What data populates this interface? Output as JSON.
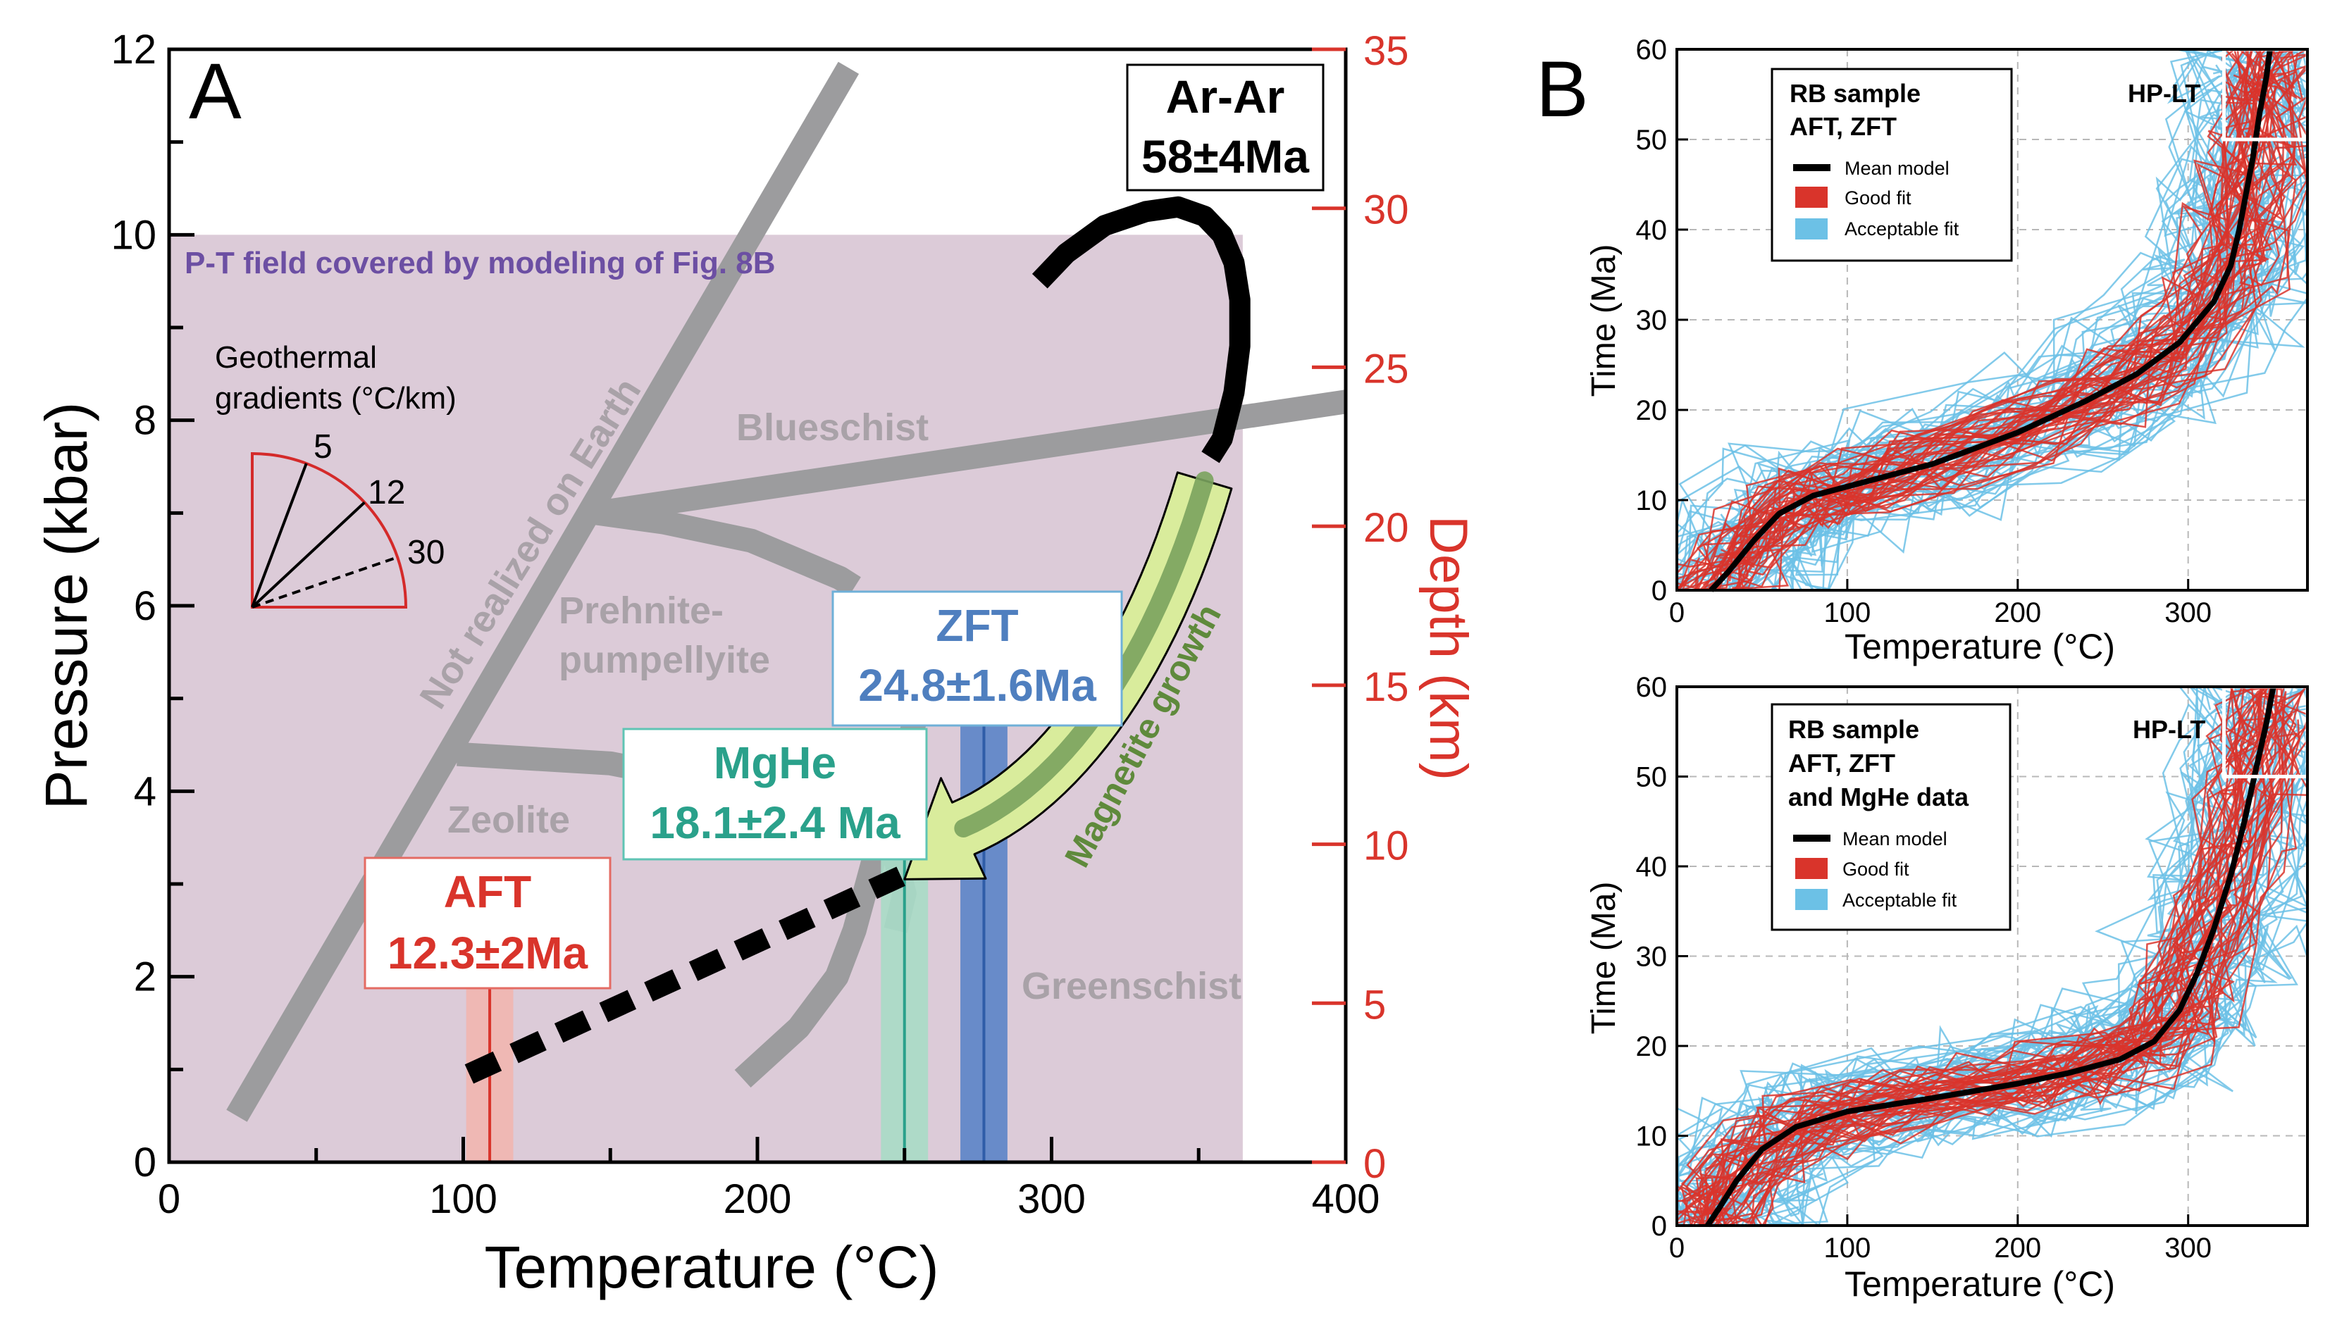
{
  "chart_data": [
    {
      "type": "line",
      "panel_label": "A",
      "xlabel": "Temperature (°C)",
      "ylabel": "Pressure (kbar)",
      "y2label": "Depth (km)",
      "xlim": [
        0,
        400
      ],
      "ylim": [
        0,
        12
      ],
      "y2lim": [
        0,
        35
      ],
      "x_ticks": [
        "0",
        "100",
        "200",
        "300",
        "400"
      ],
      "y_ticks": [
        "0",
        "2",
        "4",
        "6",
        "8",
        "10",
        "12"
      ],
      "y2_ticks": [
        "0",
        "5",
        "10",
        "15",
        "20",
        "25",
        "30",
        "35"
      ],
      "field": {
        "label": "P-T field covered by modeling of Fig. 8B",
        "x": [
          0,
          365
        ],
        "y": [
          0,
          10
        ],
        "color": "#dccbd8"
      },
      "facies_labels": [
        "Blueschist",
        "Prehnite-\npumpellyite",
        "Zeolite",
        "Greenschist"
      ],
      "earth_limit_label": "Not realized on Earth",
      "boundaries": [
        {
          "x": [
            23,
            231
          ],
          "y": [
            0.5,
            11.8
          ]
        },
        {
          "x": [
            145,
            400
          ],
          "y": [
            7.0,
            8.2
          ]
        },
        {
          "x": [
            145,
            168,
            198,
            228,
            233
          ],
          "y": [
            7.0,
            6.9,
            6.7,
            6.3,
            6.2
          ]
        },
        {
          "x": [
            98,
            150,
            198,
            228,
            245,
            250,
            247
          ],
          "y": [
            4.4,
            4.3,
            4.0,
            3.8,
            3.5,
            2.9,
            2.5
          ]
        },
        {
          "x": [
            195,
            214,
            227,
            233,
            239,
            246,
            252,
            258,
            263
          ],
          "y": [
            0.9,
            1.45,
            2.0,
            2.5,
            3.2,
            4.05,
            4.6,
            5.2,
            5.8
          ]
        }
      ],
      "geotherm_inset": {
        "title": "Geothermal\ngradients (°C/km)",
        "gradients": [
          "5",
          "12",
          "30"
        ],
        "color": "#d42a2a"
      },
      "path_solid": {
        "x": [
          296,
          305,
          318,
          332,
          343,
          352,
          358,
          362,
          364,
          364,
          362,
          358,
          354
        ],
        "y": [
          9.5,
          9.8,
          10.1,
          10.25,
          10.3,
          10.2,
          10.0,
          9.7,
          9.3,
          8.8,
          8.3,
          7.8,
          7.6
        ]
      },
      "path_dashed": {
        "x": [
          102,
          250
        ],
        "y": [
          0.95,
          3.1
        ]
      },
      "arrow_label": "Magnetite growth",
      "arrow_colors": {
        "fill": "#d9ec9c",
        "core": "#7aa35e"
      },
      "ages": [
        {
          "method": "AFT",
          "age": "12.3±2Ma",
          "T": 109,
          "T_err": 8,
          "color": "#d9342b",
          "band": "#f1b6b0"
        },
        {
          "method": "MgHe",
          "age": "18.1±2.4 Ma",
          "T": 250,
          "T_err": 8,
          "color": "#2aa18b",
          "band": "#a9dcc6"
        },
        {
          "method": "ZFT",
          "age": "24.8±1.6Ma",
          "T": 277,
          "T_err": 8,
          "color": "#2f5da8",
          "band": "#5b84c8"
        },
        {
          "method": "Ar-Ar",
          "age": "58±4Ma",
          "color": "#000000"
        }
      ]
    },
    {
      "type": "line",
      "panel_label": "B",
      "xlabel": "Temperature (°C)",
      "ylabel": "Time (Ma)",
      "xlim": [
        0,
        370
      ],
      "ylim": [
        0,
        60
      ],
      "x_ticks": [
        "0",
        "100",
        "200",
        "300"
      ],
      "y_ticks": [
        "0",
        "10",
        "20",
        "30",
        "40",
        "50",
        "60"
      ],
      "title": "RB sample\nAFT, ZFT",
      "box_label": "HP-LT",
      "legend": [
        "Mean model",
        "Good fit",
        "Acceptable fit"
      ],
      "colors": {
        "mean": "#000000",
        "good": "#d9342b",
        "acceptable": "#6cc1e6"
      },
      "mean_model": {
        "x": [
          20,
          30,
          45,
          60,
          80,
          110,
          150,
          200,
          240,
          270,
          295,
          315,
          325,
          330,
          334,
          338,
          342,
          346,
          348
        ],
        "y": [
          0,
          2,
          5.5,
          8.5,
          10.5,
          12,
          14,
          17.5,
          21,
          24,
          27.5,
          32,
          36,
          40,
          44,
          48,
          53,
          57,
          60
        ]
      }
    },
    {
      "type": "line",
      "panel_label": "",
      "xlabel": "Temperature (°C)",
      "ylabel": "Time (Ma)",
      "xlim": [
        0,
        370
      ],
      "ylim": [
        0,
        60
      ],
      "x_ticks": [
        "0",
        "100",
        "200",
        "300"
      ],
      "y_ticks": [
        "0",
        "10",
        "20",
        "30",
        "40",
        "50",
        "60"
      ],
      "title": "RB sample\nAFT, ZFT\nand MgHe data",
      "box_label": "HP-LT",
      "legend": [
        "Mean model",
        "Good fit",
        "Acceptable fit"
      ],
      "colors": {
        "mean": "#000000",
        "good": "#d9342b",
        "acceptable": "#6cc1e6"
      },
      "mean_model": {
        "x": [
          18,
          25,
          35,
          50,
          70,
          100,
          150,
          200,
          230,
          260,
          280,
          295,
          305,
          315,
          325,
          333,
          340,
          346,
          350
        ],
        "y": [
          0,
          2,
          5,
          8.5,
          11,
          12.7,
          14.2,
          15.8,
          17,
          18.5,
          20.5,
          24,
          28,
          33,
          39,
          45,
          51,
          56,
          60
        ]
      }
    }
  ]
}
